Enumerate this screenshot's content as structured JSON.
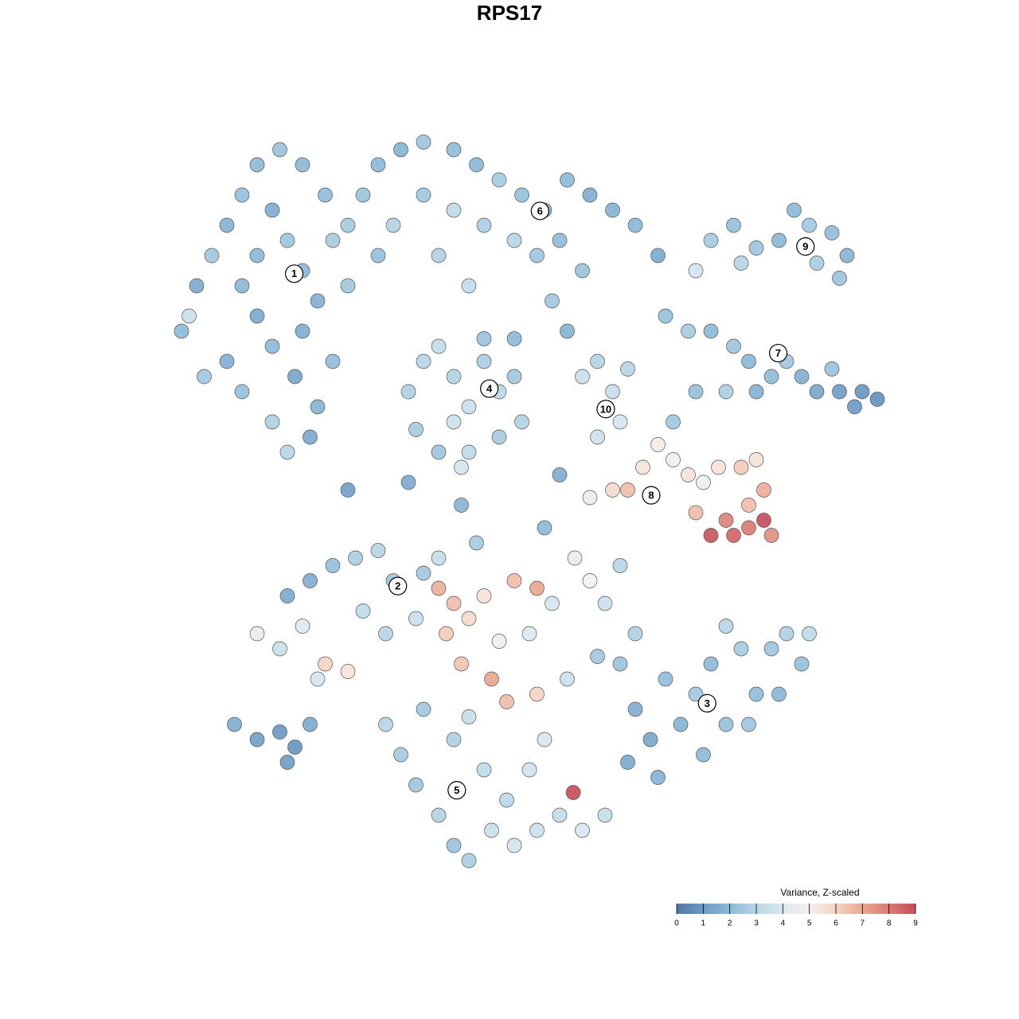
{
  "chart_data": {
    "type": "scatter",
    "title": "RPS17",
    "xlim": [
      -50,
      50
    ],
    "ylim": [
      -50,
      50
    ],
    "points": [
      [
        -46,
        22,
        2
      ],
      [
        -44,
        28,
        1.5
      ],
      [
        -42,
        32,
        2.5
      ],
      [
        -40,
        36,
        1.8
      ],
      [
        -38,
        40,
        2.2
      ],
      [
        -36,
        44,
        2
      ],
      [
        -34,
        38,
        1.6
      ],
      [
        -32,
        34,
        2.4
      ],
      [
        -30,
        30,
        2
      ],
      [
        -28,
        26,
        1.7
      ],
      [
        -26,
        34,
        2.6
      ],
      [
        -27,
        40,
        2.1
      ],
      [
        -30,
        44,
        1.9
      ],
      [
        -33,
        46,
        2.3
      ],
      [
        -36,
        24,
        1.5
      ],
      [
        -34,
        20,
        2
      ],
      [
        -31,
        16,
        1.4
      ],
      [
        -28,
        12,
        1.8
      ],
      [
        -34,
        10,
        2.8
      ],
      [
        -38,
        14,
        2.2
      ],
      [
        -40,
        18,
        1.7
      ],
      [
        -43,
        16,
        2.5
      ],
      [
        -45,
        24,
        3.5
      ],
      [
        -38,
        28,
        1.9
      ],
      [
        -30,
        22,
        1.6
      ],
      [
        -26,
        18,
        2.1
      ],
      [
        -24,
        28,
        2.5
      ],
      [
        -32,
        6,
        3
      ],
      [
        -29,
        8,
        1.5
      ],
      [
        -36,
        32,
        2
      ],
      [
        -22,
        40,
        2.3
      ],
      [
        -20,
        44,
        2
      ],
      [
        -17,
        46,
        1.8
      ],
      [
        -14,
        47,
        2.4
      ],
      [
        -10,
        46,
        2.1
      ],
      [
        -7,
        44,
        1.9
      ],
      [
        -4,
        42,
        2.6
      ],
      [
        -1,
        40,
        2.2
      ],
      [
        2,
        38,
        1.7
      ],
      [
        5,
        42,
        2
      ],
      [
        8,
        40,
        1.6
      ],
      [
        11,
        38,
        1.8
      ],
      [
        14,
        36,
        1.9
      ],
      [
        17,
        32,
        1.5
      ],
      [
        -18,
        36,
        2.9
      ],
      [
        -14,
        40,
        2.5
      ],
      [
        -10,
        38,
        3.2
      ],
      [
        -6,
        36,
        2.7
      ],
      [
        -2,
        34,
        3
      ],
      [
        1,
        32,
        2.4
      ],
      [
        4,
        34,
        2.1
      ],
      [
        7,
        30,
        2.3
      ],
      [
        -12,
        32,
        2.8
      ],
      [
        -20,
        32,
        2.2
      ],
      [
        -24,
        36,
        2.6
      ],
      [
        3,
        26,
        2.5
      ],
      [
        5,
        22,
        1.8
      ],
      [
        -8,
        28,
        3.3
      ],
      [
        22,
        30,
        3.8
      ],
      [
        24,
        34,
        2.6
      ],
      [
        27,
        36,
        2.2
      ],
      [
        30,
        33,
        2.4
      ],
      [
        33,
        34,
        1.9
      ],
      [
        35,
        38,
        2
      ],
      [
        37,
        36,
        2.5
      ],
      [
        40,
        35,
        2.1
      ],
      [
        42,
        32,
        1.8
      ],
      [
        41,
        29,
        2.3
      ],
      [
        38,
        31,
        2.7
      ],
      [
        28,
        31,
        3
      ],
      [
        18,
        24,
        2.2
      ],
      [
        21,
        22,
        2.6
      ],
      [
        24,
        22,
        2
      ],
      [
        27,
        20,
        2.4
      ],
      [
        29,
        18,
        1.9
      ],
      [
        32,
        16,
        2.1
      ],
      [
        34,
        18,
        2.5
      ],
      [
        36,
        16,
        1.7
      ],
      [
        38,
        14,
        1.4
      ],
      [
        41,
        14,
        1.1
      ],
      [
        44,
        14,
        0.9
      ],
      [
        46,
        13,
        0.8
      ],
      [
        43,
        12,
        1
      ],
      [
        40,
        17,
        2.3
      ],
      [
        26,
        14,
        2.7
      ],
      [
        22,
        14,
        2.2
      ],
      [
        19,
        10,
        2.5
      ],
      [
        30,
        14,
        1.8
      ],
      [
        -16,
        14,
        2.8
      ],
      [
        -14,
        18,
        3
      ],
      [
        -12,
        20,
        3.3
      ],
      [
        -10,
        16,
        2.9
      ],
      [
        -8,
        12,
        3.5
      ],
      [
        -6,
        18,
        2.7
      ],
      [
        -4,
        14,
        3.1
      ],
      [
        -2,
        16,
        2.5
      ],
      [
        -1,
        10,
        2.9
      ],
      [
        -4,
        8,
        2.6
      ],
      [
        -8,
        6,
        3.2
      ],
      [
        -12,
        6,
        2.4
      ],
      [
        -15,
        9,
        2.6
      ],
      [
        -10,
        10,
        3.6
      ],
      [
        -6,
        21,
        2.3
      ],
      [
        -2,
        21,
        2
      ],
      [
        7,
        16,
        3.5
      ],
      [
        9,
        18,
        2.9
      ],
      [
        11,
        14,
        3.4
      ],
      [
        12,
        10,
        3.8
      ],
      [
        9,
        8,
        3.6
      ],
      [
        13,
        17,
        3
      ],
      [
        8,
        0,
        4.5
      ],
      [
        11,
        1,
        5.8
      ],
      [
        13,
        1,
        6.5
      ],
      [
        15,
        4,
        5.5
      ],
      [
        17,
        7,
        5.2
      ],
      [
        19,
        5,
        4.8
      ],
      [
        21,
        3,
        5.5
      ],
      [
        23,
        2,
        4.7
      ],
      [
        25,
        4,
        5.5
      ],
      [
        28,
        4,
        6.2
      ],
      [
        30,
        5,
        5.5
      ],
      [
        31,
        1,
        6.8
      ],
      [
        29,
        -1,
        6.5
      ],
      [
        26,
        -3,
        7.8
      ],
      [
        27,
        -5,
        8.5
      ],
      [
        29,
        -4,
        8
      ],
      [
        31,
        -3,
        9
      ],
      [
        32,
        -5,
        7.5
      ],
      [
        24,
        -5,
        8.8
      ],
      [
        22,
        -2,
        6.5
      ],
      [
        -12,
        -12,
        6.8
      ],
      [
        -10,
        -14,
        6.5
      ],
      [
        -8,
        -16,
        5.8
      ],
      [
        -11,
        -18,
        6.2
      ],
      [
        -6,
        -13,
        5.5
      ],
      [
        -2,
        -11,
        6.5
      ],
      [
        1,
        -12,
        7
      ],
      [
        -9,
        -22,
        6.3
      ],
      [
        -5,
        -24,
        7
      ],
      [
        -4,
        -19,
        4.8
      ],
      [
        0,
        -18,
        4
      ],
      [
        3,
        -14,
        3.8
      ],
      [
        6,
        -8,
        4.5
      ],
      [
        8,
        -11,
        5
      ],
      [
        10,
        -14,
        3.5
      ],
      [
        12,
        -9,
        3
      ],
      [
        14,
        -18,
        2.8
      ],
      [
        9,
        -21,
        2.5
      ],
      [
        5,
        -24,
        3.5
      ],
      [
        1,
        -26,
        6
      ],
      [
        -3,
        -27,
        6.5
      ],
      [
        -12,
        -8,
        3.4
      ],
      [
        -7,
        -6,
        2.6
      ],
      [
        2,
        -4,
        2
      ],
      [
        -36,
        -18,
        4.5
      ],
      [
        -33,
        -20,
        3.5
      ],
      [
        -30,
        -17,
        4
      ],
      [
        -27,
        -22,
        6
      ],
      [
        -24,
        -23,
        5.5
      ],
      [
        -32,
        -13,
        1.5
      ],
      [
        -29,
        -11,
        1.6
      ],
      [
        -26,
        -9,
        2.2
      ],
      [
        -23,
        -8,
        2.7
      ],
      [
        -20,
        -7,
        3
      ],
      [
        -18,
        -11,
        2.4
      ],
      [
        -14,
        -10,
        2.5
      ],
      [
        -22,
        -15,
        3.2
      ],
      [
        -19,
        -18,
        3
      ],
      [
        -15,
        -16,
        3.5
      ],
      [
        -28,
        -24,
        3.8
      ],
      [
        12,
        -22,
        2.3
      ],
      [
        14,
        -28,
        1.6
      ],
      [
        16,
        -32,
        1.4
      ],
      [
        18,
        -24,
        2.1
      ],
      [
        20,
        -30,
        1.8
      ],
      [
        22,
        -26,
        2.5
      ],
      [
        24,
        -22,
        2
      ],
      [
        26,
        -30,
        2.2
      ],
      [
        28,
        -20,
        2.6
      ],
      [
        30,
        -26,
        2.1
      ],
      [
        32,
        -20,
        2.4
      ],
      [
        34,
        -18,
        2.8
      ],
      [
        36,
        -22,
        2.2
      ],
      [
        37,
        -18,
        3.2
      ],
      [
        33,
        -26,
        1.9
      ],
      [
        29,
        -30,
        2.4
      ],
      [
        23,
        -34,
        2
      ],
      [
        17,
        -37,
        1.8
      ],
      [
        13,
        -35,
        1.5
      ],
      [
        26,
        -17,
        3
      ],
      [
        -19,
        -30,
        3
      ],
      [
        -17,
        -34,
        2.6
      ],
      [
        -15,
        -38,
        2.4
      ],
      [
        -12,
        -42,
        2.9
      ],
      [
        -10,
        -46,
        2.3
      ],
      [
        -8,
        -48,
        2.7
      ],
      [
        -5,
        -44,
        3.5
      ],
      [
        -2,
        -46,
        3.8
      ],
      [
        1,
        -44,
        3.6
      ],
      [
        4,
        -42,
        3.3
      ],
      [
        7,
        -44,
        3.9
      ],
      [
        10,
        -42,
        3.4
      ],
      [
        -3,
        -40,
        3.1
      ],
      [
        0,
        -36,
        3.7
      ],
      [
        -6,
        -36,
        3.2
      ],
      [
        -10,
        -32,
        2.8
      ],
      [
        -14,
        -28,
        2.5
      ],
      [
        -8,
        -29,
        3.4
      ],
      [
        2,
        -32,
        3.9
      ],
      [
        5.8,
        -39,
        9
      ],
      [
        -39,
        -30,
        1.6
      ],
      [
        -36,
        -32,
        1.2
      ],
      [
        -33,
        -31,
        1
      ],
      [
        -31,
        -33,
        0.9
      ],
      [
        -32,
        -35,
        1.1
      ],
      [
        -29,
        -30,
        1.5
      ],
      [
        -24,
        1,
        1.2
      ],
      [
        -16,
        2,
        1.5
      ],
      [
        -9,
        -1,
        1.8
      ],
      [
        4,
        3,
        1.6
      ],
      [
        -9,
        4,
        3.8
      ]
    ],
    "annotations": [
      {
        "text": "1",
        "x": -31.1,
        "y": 29.6
      },
      {
        "text": "6",
        "x": 1.4,
        "y": 37.9
      },
      {
        "text": "9",
        "x": 36.5,
        "y": 33.2
      },
      {
        "text": "7",
        "x": 32.9,
        "y": 19.1
      },
      {
        "text": "4",
        "x": -5.3,
        "y": 14.4
      },
      {
        "text": "10",
        "x": 10.1,
        "y": 11.7
      },
      {
        "text": "8",
        "x": 16.1,
        "y": 0.3
      },
      {
        "text": "2",
        "x": -17.4,
        "y": -11.7
      },
      {
        "text": "3",
        "x": 23.5,
        "y": -27.2
      },
      {
        "text": "5",
        "x": -9.6,
        "y": -38.7
      }
    ],
    "colorbar_title": "Variance, Z-scaled",
    "clim": [
      0,
      9
    ],
    "cticks": [
      0,
      1,
      2,
      3,
      4,
      5,
      6,
      7,
      8,
      9
    ],
    "colormap": [
      "#4f77a5",
      "#6c9ac5",
      "#8dbad8",
      "#b7d6e6",
      "#dbe9f1",
      "#f5f1ef",
      "#f5d4c4",
      "#eaa68f",
      "#da7c72",
      "#c54e5a"
    ]
  }
}
